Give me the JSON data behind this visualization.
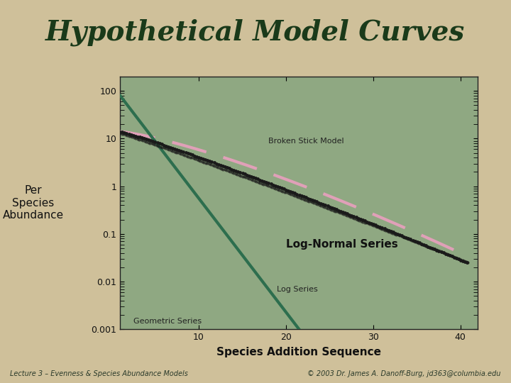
{
  "title": "Hypothetical Model Curves",
  "xlabel": "Species Addition Sequence",
  "ylabel": "Per\nSpecies\nAbundance",
  "bg_color": "#cfc09a",
  "plot_bg_color": "#8fa882",
  "title_color": "#1a3a1a",
  "banner_color": "#a8a0cc",
  "xticks": [
    10,
    20,
    30,
    40
  ],
  "ytick_vals": [
    0.001,
    0.01,
    0.1,
    1,
    10,
    100
  ],
  "ytick_labels": [
    "0.001",
    "0.01",
    "0.1",
    "1",
    "10",
    "100"
  ],
  "geo_color": "#2d6e4e",
  "dot_color": "#1a1a1a",
  "broken_color": "#e0a0b8",
  "footer_left": "Lecture 3 – Evenness & Species Abundance Models",
  "footer_right": "© 2003 Dr. James A. Danoff-Burg, jd363@columbia.edu",
  "ann_broken": "Broken Stick Model",
  "ann_lognormal": "Log-Normal Series",
  "ann_logseries": "Log Series",
  "ann_geometric": "Geometric Series"
}
